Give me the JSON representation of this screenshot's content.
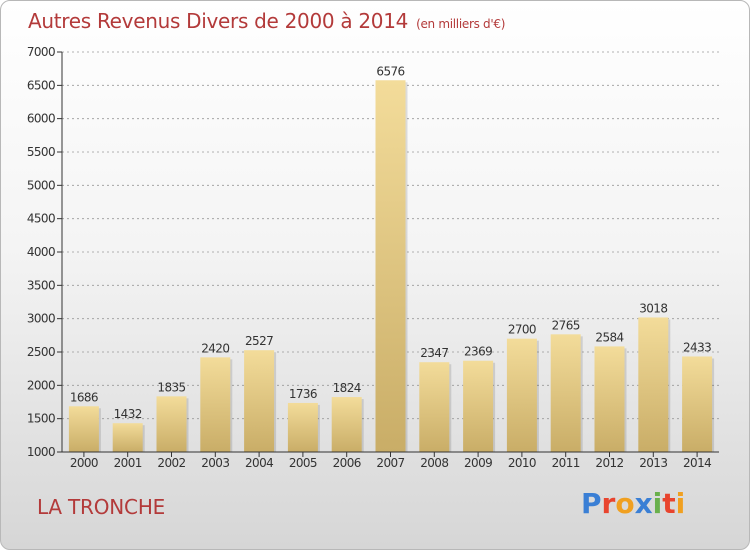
{
  "title": "Autres Revenus Divers de 2000 à 2014",
  "title_unit": "(en milliers d'€)",
  "place": "LA TRONCHE",
  "logo": {
    "text": "Proxiti",
    "colors": [
      "#3a7fd5",
      "#e8442e",
      "#f0a020",
      "#3a7fd5",
      "#6ab04c",
      "#e8442e",
      "#f0a020"
    ]
  },
  "colors": {
    "bar_light": "#f3dc9a",
    "bar_dark": "#c9ad67",
    "title": "#b33a3a",
    "axis": "#333333",
    "grid": "#999999"
  },
  "chart_data": {
    "type": "bar",
    "categories": [
      "2000",
      "2001",
      "2002",
      "2003",
      "2004",
      "2005",
      "2006",
      "2007",
      "2008",
      "2009",
      "2010",
      "2011",
      "2012",
      "2013",
      "2014"
    ],
    "values": [
      1686,
      1432,
      1835,
      2420,
      2527,
      1736,
      1824,
      6576,
      2347,
      2369,
      2700,
      2765,
      2584,
      3018,
      2433
    ],
    "ylim": [
      1000,
      7000
    ],
    "yticks": [
      1000,
      1500,
      2000,
      2500,
      3000,
      3500,
      4000,
      4500,
      5000,
      5500,
      6000,
      6500,
      7000
    ],
    "grid": true,
    "data_labels": true,
    "xlabel": "",
    "ylabel": ""
  }
}
